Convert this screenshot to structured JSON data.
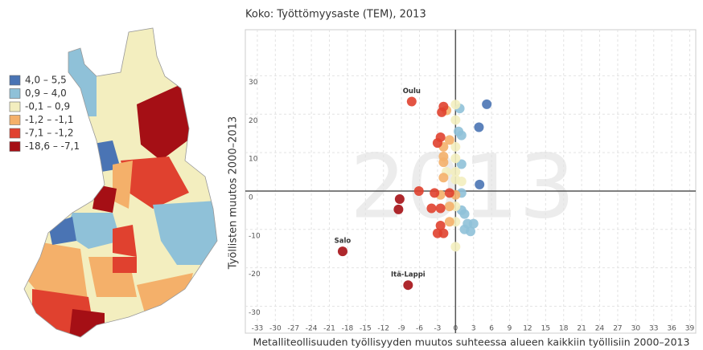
{
  "chart_data": {
    "type": "scatter",
    "title": "Koko: Työttömyysaste (TEM), 2013",
    "watermark": "2013",
    "x_label": "Metalliteollisuuden työllisyyden muutos suhteessa alueen kaikkiin työllisiin 2000–2013",
    "y_label": "Työllisten muutos 2000–2013",
    "xlim": [
      -35,
      40
    ],
    "ylim": [
      -37,
      42
    ],
    "xticks": [
      -33,
      -30,
      -27,
      -24,
      -21,
      -18,
      -15,
      -12,
      -9,
      -6,
      -3,
      0,
      3,
      6,
      9,
      12,
      15,
      18,
      21,
      24,
      27,
      30,
      33,
      36,
      39
    ],
    "yticks": [
      -30,
      -20,
      -10,
      0,
      10,
      20,
      30
    ],
    "grid": true,
    "series": [
      {
        "name": "4,0 – 5,5",
        "color": "#4a74b4",
        "x": [
          5.2,
          3.9,
          4
        ],
        "y": [
          22.6,
          16.6,
          1.7
        ],
        "labels": [
          null,
          null,
          null
        ]
      },
      {
        "name": "0,9 – 4,0",
        "color": "#8fc1d8",
        "x": [
          0.7,
          0.5,
          1,
          1,
          1,
          1,
          1.5,
          2.5,
          3,
          2,
          1.5
        ],
        "y": [
          21.5,
          15.5,
          14.5,
          7,
          -0.5,
          -5,
          -10,
          -10.5,
          -8.5,
          -8.5,
          -6
        ],
        "labels": [
          null,
          null,
          null,
          null,
          null,
          null,
          null,
          null,
          null,
          null,
          null
        ]
      },
      {
        "name": "-0,1 – 0,9",
        "color": "#f3eebf",
        "x": [
          0,
          0,
          0,
          0,
          -1.5,
          0,
          0,
          1,
          0,
          0,
          0
        ],
        "y": [
          22.5,
          18.5,
          11.5,
          8.5,
          5,
          5,
          3,
          2.5,
          -4,
          -8,
          -14.5
        ],
        "labels": [
          null,
          null,
          null,
          null,
          null,
          null,
          null,
          null,
          null,
          null,
          null
        ]
      },
      {
        "name": "-1,2 – -1,1",
        "color": "#f4b06a",
        "x": [
          -1.5,
          -1,
          -2,
          -2,
          -2,
          -2,
          -2.5,
          0,
          -1,
          -1
        ],
        "y": [
          21,
          13.3,
          11.5,
          9,
          7.5,
          3.5,
          -1,
          -1,
          -4,
          -8
        ],
        "labels": [
          null,
          null,
          null,
          null,
          null,
          null,
          null,
          null,
          null,
          null
        ]
      },
      {
        "name": "-7,1 – -1,2",
        "color": "#e0412f",
        "x": [
          -7.3,
          -2,
          -2.3,
          -2.5,
          -3,
          -6.1,
          -3.5,
          -1,
          -4,
          -2.5,
          -2.5,
          -2,
          -3
        ],
        "y": [
          23.3,
          22,
          20.5,
          14,
          12.5,
          0,
          -0.5,
          -0.5,
          -4.5,
          -4.5,
          -9,
          -11,
          -11
        ],
        "labels": [
          "Oulu",
          null,
          null,
          null,
          null,
          null,
          null,
          null,
          null,
          null,
          null,
          null,
          null
        ]
      },
      {
        "name": "-18,6 – -7,1",
        "color": "#a50f15",
        "x": [
          -18.8,
          -7.9,
          -9.3,
          -9.5
        ],
        "y": [
          -15.7,
          -24.5,
          -2.1,
          -4.8
        ],
        "labels": [
          "Salo",
          "Itä-Lappi",
          null,
          null
        ]
      }
    ]
  }
}
